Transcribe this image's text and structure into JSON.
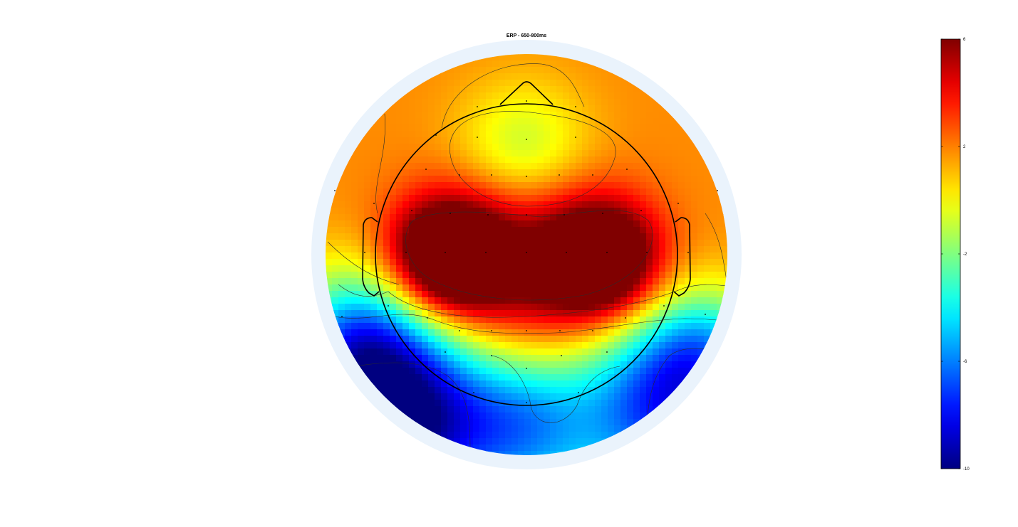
{
  "chart_data": {
    "type": "heatmap",
    "subtype": "eeg-topographic-map",
    "title": "ERP - 650-800ms",
    "colormap": "jet",
    "colorbar": {
      "placement": "right",
      "min": -10,
      "max": 6,
      "ticks": [
        6,
        2,
        -2,
        -6,
        -10
      ]
    },
    "scalp_field_peaks": [
      {
        "region": "left-central",
        "value": 6
      },
      {
        "region": "right-central",
        "value": 5.5
      },
      {
        "region": "frontal",
        "value": 0.5
      },
      {
        "region": "left-occipital",
        "value": -10
      },
      {
        "region": "right-occipital",
        "value": -7
      },
      {
        "region": "midline-occipital",
        "value": -4
      }
    ],
    "colors": {
      "ring": "#eaf3fc",
      "head_outline": "#000000",
      "background": "#ffffff"
    }
  }
}
